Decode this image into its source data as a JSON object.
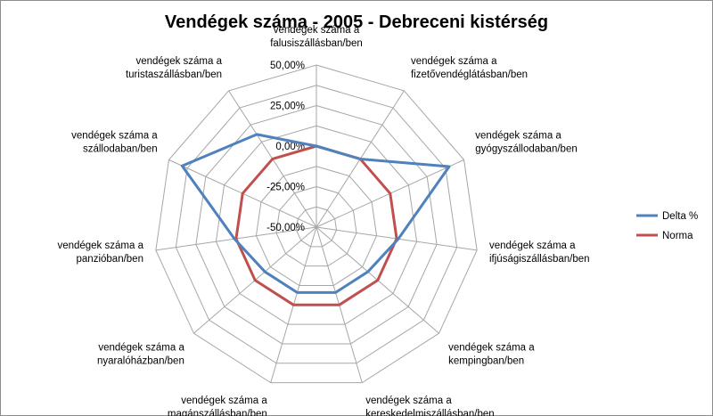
{
  "chart_data": {
    "type": "radar",
    "title": "Vendégek száma - 2005 - Debreceni kistérség",
    "categories": [
      [
        "vendégek száma a",
        "falusiszállásban/ben"
      ],
      [
        "vendégek száma a",
        "fizetővendéglátásban/ben"
      ],
      [
        "vendégek száma a",
        "gyógyszállodaban/ben"
      ],
      [
        "vendégek száma a",
        "ifjúságiszállásban/ben"
      ],
      [
        "vendégek száma a",
        "kempingban/ben"
      ],
      [
        "vendégek száma a",
        "kereskedelmiszállásban/ben"
      ],
      [
        "vendégek száma a",
        "magánszállásban/ben"
      ],
      [
        "vendégek száma a",
        "nyaralóházban/ben"
      ],
      [
        "vendégek száma a",
        "panzióban/ben"
      ],
      [
        "vendégek száma a",
        "szállodaban/ben"
      ],
      [
        "vendégek száma a",
        "turistaszállásban/ben"
      ]
    ],
    "rlim": [
      -50,
      50
    ],
    "ticks": [
      -50,
      -25,
      0,
      25,
      50
    ],
    "tick_labels": [
      "-50,00%",
      "-25,00%",
      "0,00%",
      "25,00%",
      "50,00%"
    ],
    "series": [
      {
        "name": "Delta %",
        "color": "#4f81bd",
        "values": [
          0,
          0,
          40,
          1,
          -8,
          -8,
          -8,
          -8,
          1,
          41,
          18
        ]
      },
      {
        "name": "Norma",
        "color": "#c0504d",
        "values": [
          0,
          0,
          0,
          0,
          0,
          0,
          0,
          0,
          0,
          0,
          0
        ]
      }
    ],
    "legend": "right"
  }
}
